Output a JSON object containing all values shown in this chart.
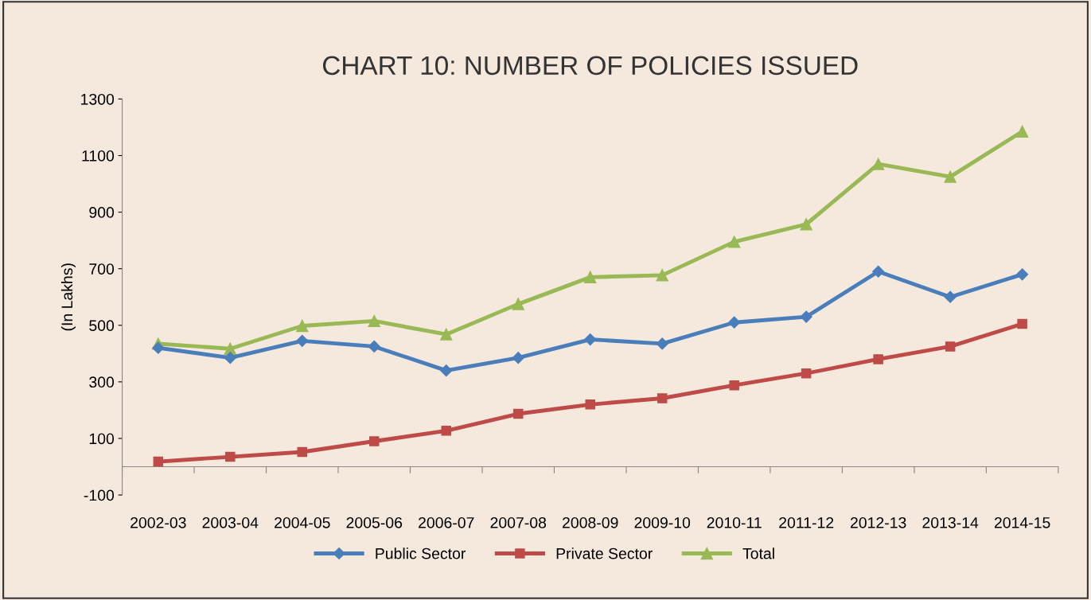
{
  "chart_data": {
    "type": "line",
    "title": "CHART 10: NUMBER OF POLICIES ISSUED",
    "ylabel": "(In Lakhs)",
    "categories": [
      "2002-03",
      "2003-04",
      "2004-05",
      "2005-06",
      "2006-07",
      "2007-08",
      "2008-09",
      "2009-10",
      "2010-11",
      "2011-12",
      "2012-13",
      "2013-14",
      "2014-15"
    ],
    "series": [
      {
        "name": "Public Sector",
        "color": "#4a7ebb",
        "marker": "diamond",
        "values": [
          420,
          385,
          445,
          425,
          340,
          385,
          450,
          435,
          510,
          530,
          690,
          600,
          680
        ]
      },
      {
        "name": "Private Sector",
        "color": "#be4b48",
        "marker": "square",
        "values": [
          18,
          35,
          52,
          90,
          127,
          187,
          220,
          242,
          288,
          330,
          380,
          425,
          505
        ]
      },
      {
        "name": "Total",
        "color": "#98b954",
        "marker": "triangle",
        "values": [
          435,
          417,
          498,
          515,
          468,
          575,
          670,
          677,
          795,
          857,
          1070,
          1025,
          1185
        ]
      }
    ],
    "ylim": [
      -100,
      1300
    ],
    "yticks": [
      -100,
      100,
      300,
      500,
      700,
      900,
      1100,
      1300
    ],
    "grid": false,
    "legend": "bottom",
    "line_style": "solid"
  }
}
